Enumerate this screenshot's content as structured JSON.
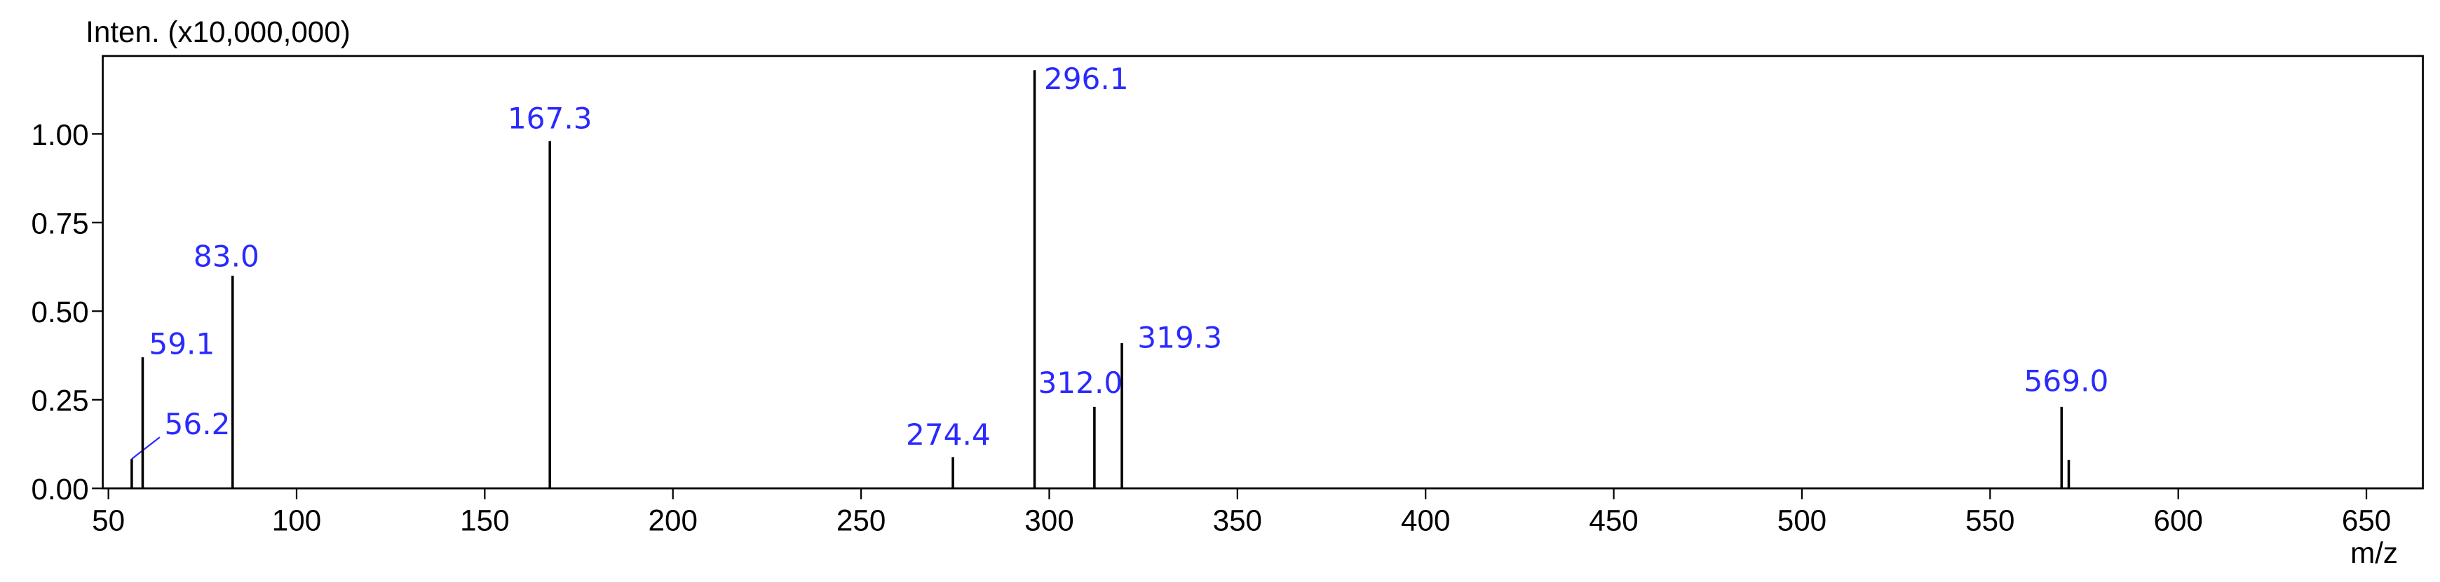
{
  "chart_data": {
    "type": "stem",
    "y_label": "Inten. (x10,000,000)",
    "x_label": "m/z",
    "x": [
      56.2,
      59.1,
      83.0,
      167.3,
      274.4,
      296.1,
      312.0,
      319.3,
      569.0,
      570.9
    ],
    "values": [
      0.083,
      0.37,
      0.6,
      0.98,
      0.088,
      1.18,
      0.23,
      0.41,
      0.23,
      0.08
    ],
    "peak_labels": [
      "56.2",
      "59.1",
      "83.0",
      "167.3",
      "274.4",
      "296.1",
      "312.0",
      "319.3",
      "569.0",
      null
    ],
    "color": "#000000",
    "label_color": "#2a2aff",
    "xlim": [
      48.5,
      665
    ],
    "ylim": [
      0,
      1.22
    ],
    "xticks": [
      50,
      100,
      150,
      200,
      250,
      300,
      350,
      400,
      450,
      500,
      550,
      600,
      650
    ],
    "yticks": [
      {
        "value": 0,
        "label": "0.00"
      },
      {
        "value": 0.25,
        "label": "0.25"
      },
      {
        "value": 0.5,
        "label": "0.50"
      },
      {
        "value": 0.75,
        "label": "0.75"
      },
      {
        "value": 1,
        "label": "1.00"
      }
    ]
  }
}
